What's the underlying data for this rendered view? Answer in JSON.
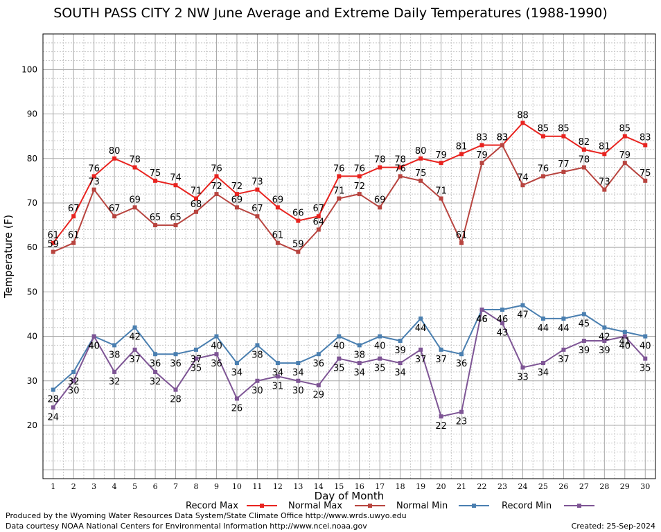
{
  "chart_data": {
    "type": "line",
    "title": "SOUTH PASS CITY 2 NW June Average and Extreme Daily Temperatures (1988-1990)",
    "xlabel": "Day of Month",
    "ylabel": "Temperature (F)",
    "xlim": [
      0.5,
      30.5
    ],
    "ylim": [
      8,
      108
    ],
    "yticks": [
      20,
      30,
      40,
      50,
      60,
      70,
      80,
      90,
      100
    ],
    "grid": true,
    "legend_position": "bottom",
    "x": [
      1,
      2,
      3,
      4,
      5,
      6,
      7,
      8,
      9,
      10,
      11,
      12,
      13,
      14,
      15,
      16,
      17,
      18,
      19,
      20,
      21,
      22,
      23,
      24,
      25,
      26,
      27,
      28,
      29,
      30
    ],
    "series": [
      {
        "name": "Record Max",
        "color": "#e8231f",
        "values": [
          61,
          67,
          76,
          80,
          78,
          75,
          74,
          71,
          76,
          72,
          73,
          69,
          66,
          67,
          76,
          76,
          78,
          78,
          80,
          79,
          81,
          83,
          83,
          88,
          85,
          85,
          82,
          81,
          85,
          83
        ]
      },
      {
        "name": "Normal Max",
        "color": "#b8443f",
        "values": [
          59,
          61,
          73,
          67,
          69,
          65,
          65,
          68,
          72,
          69,
          67,
          61,
          59,
          64,
          71,
          72,
          69,
          76,
          75,
          71,
          61,
          79,
          83,
          74,
          76,
          77,
          78,
          73,
          79,
          75
        ]
      },
      {
        "name": "Normal Min",
        "color": "#4a7fb0",
        "values": [
          28,
          32,
          40,
          38,
          42,
          36,
          36,
          37,
          40,
          34,
          38,
          34,
          34,
          36,
          40,
          38,
          40,
          39,
          44,
          37,
          36,
          46,
          46,
          47,
          44,
          44,
          45,
          42,
          41,
          40
        ]
      },
      {
        "name": "Record Min",
        "color": "#7e5595",
        "values": [
          24,
          30,
          40,
          32,
          37,
          32,
          28,
          35,
          36,
          26,
          30,
          31,
          30,
          29,
          35,
          34,
          35,
          34,
          37,
          22,
          23,
          46,
          43,
          33,
          34,
          37,
          39,
          39,
          40,
          35
        ]
      }
    ]
  },
  "footer": {
    "produced_by": "Produced by the Wyoming Water Resources Data System/State Climate Office http://www.wrds.uwyo.edu",
    "courtesy": "Data courtesy NOAA National Centers for Environmental Information http://www.ncei.noaa.gov",
    "created": "Created:  25-Sep-2024"
  }
}
